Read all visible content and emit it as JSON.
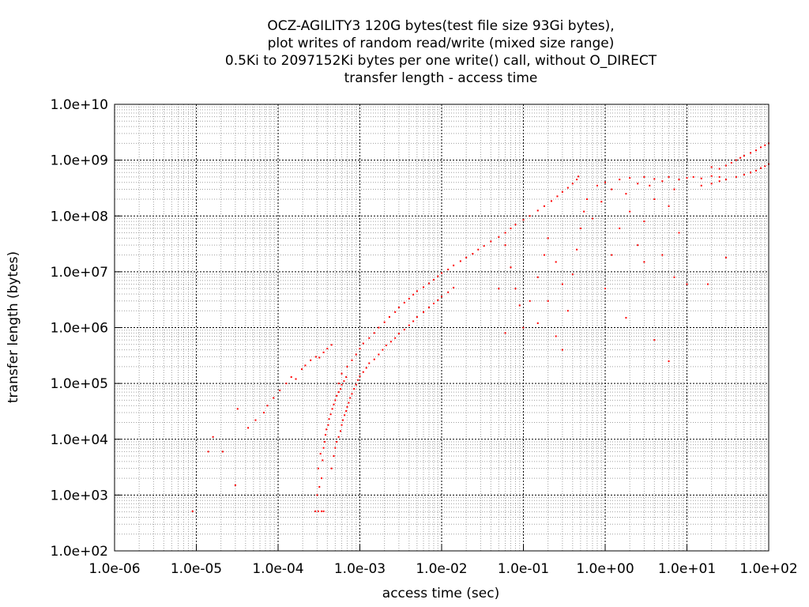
{
  "chart_data": {
    "type": "scatter",
    "title_lines": [
      "OCZ-AGILITY3 120G bytes(test file size 93Gi bytes),",
      "plot writes of random read/write (mixed size range)",
      "0.5Ki to 2097152Ki bytes per one write() call, without O_DIRECT",
      "transfer length - access time"
    ],
    "xlabel": "access time (sec)",
    "ylabel": "transfer length (bytes)",
    "x_scale": "log",
    "y_scale": "log",
    "xlim": [
      1e-06,
      100
    ],
    "ylim": [
      100,
      10000000000
    ],
    "x_ticks": [
      1e-06,
      1e-05,
      0.0001,
      0.001,
      0.01,
      0.1,
      1,
      10,
      100
    ],
    "x_tick_labels": [
      "1.0e-06",
      "1.0e-05",
      "1.0e-04",
      "1.0e-03",
      "1.0e-02",
      "1.0e-01",
      "1.0e+00",
      "1.0e+01",
      "1.0e+02"
    ],
    "y_ticks": [
      100,
      1000,
      10000,
      100000,
      1000000,
      10000000,
      100000000,
      1000000000,
      10000000000
    ],
    "y_tick_labels": [
      "1.0e+02",
      "1.0e+03",
      "1.0e+04",
      "1.0e+05",
      "1.0e+06",
      "1.0e+07",
      "1.0e+08",
      "1.0e+09",
      "1.0e+10"
    ],
    "grid": "major and minor",
    "marker_color": "#ff0000",
    "series": [
      {
        "points": [
          [
            9e-06,
            512
          ],
          [
            1.4e-05,
            6000
          ],
          [
            1.6e-05,
            11000
          ],
          [
            2.1e-05,
            6000
          ],
          [
            3e-05,
            1500
          ],
          [
            3.2e-05,
            35000
          ],
          [
            4.3e-05,
            16000
          ],
          [
            5.3e-05,
            22000
          ],
          [
            6.7e-05,
            30000
          ],
          [
            7.4e-05,
            40000
          ],
          [
            8.8e-05,
            55000
          ],
          [
            0.000105,
            75000
          ],
          [
            0.000126,
            100000
          ],
          [
            0.000145,
            130000
          ],
          [
            0.000165,
            120000
          ],
          [
            0.000195,
            180000
          ],
          [
            0.000215,
            210000
          ],
          [
            0.00025,
            260000
          ],
          [
            0.00029,
            300000
          ],
          [
            0.00032,
            290000
          ],
          [
            0.00036,
            360000
          ],
          [
            0.0004,
            420000
          ],
          [
            0.00045,
            490000
          ],
          [
            0.000285,
            512
          ],
          [
            0.00031,
            512
          ],
          [
            0.00034,
            512
          ],
          [
            0.00036,
            512
          ],
          [
            0.0003,
            1000
          ],
          [
            0.00032,
            1400
          ],
          [
            0.00034,
            2000
          ],
          [
            0.00031,
            3000
          ],
          [
            0.00035,
            4200
          ],
          [
            0.00033,
            5500
          ],
          [
            0.00036,
            7000
          ],
          [
            0.00037,
            9000
          ],
          [
            0.00038,
            12000
          ],
          [
            0.00039,
            15000
          ],
          [
            0.00041,
            18000
          ],
          [
            0.00042,
            23000
          ],
          [
            0.00044,
            28000
          ],
          [
            0.00046,
            35000
          ],
          [
            0.00048,
            42000
          ],
          [
            0.0005,
            50000
          ],
          [
            0.00052,
            60000
          ],
          [
            0.00055,
            70000
          ],
          [
            0.00058,
            80000
          ],
          [
            0.0006,
            95000
          ],
          [
            0.00064,
            110000
          ],
          [
            0.00068,
            130000
          ],
          [
            0.00045,
            3000
          ],
          [
            0.00048,
            5000
          ],
          [
            0.0005,
            7000
          ],
          [
            0.00052,
            9000
          ],
          [
            0.00055,
            11000
          ],
          [
            0.00058,
            14000
          ],
          [
            0.0006,
            18000
          ],
          [
            0.00062,
            22000
          ],
          [
            0.00065,
            27000
          ],
          [
            0.00068,
            32000
          ],
          [
            0.0007,
            38000
          ],
          [
            0.00073,
            45000
          ],
          [
            0.00076,
            55000
          ],
          [
            0.0008,
            65000
          ],
          [
            0.00085,
            80000
          ],
          [
            0.0009,
            95000
          ],
          [
            0.00095,
            115000
          ],
          [
            0.001,
            135000
          ],
          [
            0.0011,
            160000
          ],
          [
            0.0012,
            190000
          ],
          [
            0.0013,
            230000
          ],
          [
            0.0015,
            270000
          ],
          [
            0.0017,
            330000
          ],
          [
            0.0019,
            400000
          ],
          [
            0.0021,
            480000
          ],
          [
            0.0024,
            560000
          ],
          [
            0.0027,
            650000
          ],
          [
            0.003,
            780000
          ],
          [
            0.0035,
            920000
          ],
          [
            0.004,
            1100000
          ],
          [
            0.0045,
            1300000
          ],
          [
            0.005,
            1550000
          ],
          [
            0.006,
            1900000
          ],
          [
            0.007,
            2300000
          ],
          [
            0.008,
            2700000
          ],
          [
            0.009,
            3100000
          ],
          [
            0.01,
            3600000
          ],
          [
            0.012,
            4300000
          ],
          [
            0.014,
            5200000
          ],
          [
            0.00055,
            100000
          ],
          [
            0.0006,
            150000
          ],
          [
            0.0007,
            200000
          ],
          [
            0.0008,
            260000
          ],
          [
            0.0009,
            330000
          ],
          [
            0.001,
            420000
          ],
          [
            0.0011,
            520000
          ],
          [
            0.0013,
            650000
          ],
          [
            0.0015,
            800000
          ],
          [
            0.0017,
            1000000
          ],
          [
            0.002,
            1250000
          ],
          [
            0.0023,
            1550000
          ],
          [
            0.0027,
            1900000
          ],
          [
            0.003,
            2300000
          ],
          [
            0.0035,
            2800000
          ],
          [
            0.004,
            3300000
          ],
          [
            0.0045,
            3900000
          ],
          [
            0.005,
            4500000
          ],
          [
            0.006,
            5300000
          ],
          [
            0.007,
            6200000
          ],
          [
            0.008,
            7200000
          ],
          [
            0.009,
            8300000
          ],
          [
            0.01,
            9500000
          ],
          [
            0.012,
            11000000
          ],
          [
            0.014,
            13000000
          ],
          [
            0.017,
            15500000
          ],
          [
            0.02,
            18000000
          ],
          [
            0.024,
            21000000
          ],
          [
            0.028,
            25000000
          ],
          [
            0.033,
            29000000
          ],
          [
            0.04,
            35000000
          ],
          [
            0.05,
            42000000
          ],
          [
            0.06,
            50000000
          ],
          [
            0.07,
            60000000
          ],
          [
            0.08,
            70000000
          ],
          [
            0.1,
            85000000
          ],
          [
            0.12,
            100000000
          ],
          [
            0.15,
            125000000
          ],
          [
            0.18,
            150000000
          ],
          [
            0.22,
            185000000
          ],
          [
            0.26,
            225000000
          ],
          [
            0.3,
            270000000
          ],
          [
            0.35,
            320000000
          ],
          [
            0.4,
            380000000
          ],
          [
            0.45,
            450000000
          ],
          [
            0.47,
            510000000
          ],
          [
            0.06,
            30000000
          ],
          [
            0.07,
            12000000
          ],
          [
            0.08,
            5000000
          ],
          [
            0.09,
            2500000
          ],
          [
            0.1,
            1000000
          ],
          [
            0.12,
            3000000
          ],
          [
            0.15,
            8000000
          ],
          [
            0.18,
            20000000
          ],
          [
            0.2,
            40000000
          ],
          [
            0.25,
            15000000
          ],
          [
            0.3,
            6000000
          ],
          [
            0.35,
            2000000
          ],
          [
            0.4,
            9000000
          ],
          [
            0.45,
            25000000
          ],
          [
            0.5,
            60000000
          ],
          [
            0.55,
            120000000
          ],
          [
            0.6,
            200000000
          ],
          [
            0.7,
            90000000
          ],
          [
            0.8,
            350000000
          ],
          [
            0.9,
            180000000
          ],
          [
            1.0,
            400000000
          ],
          [
            1.2,
            300000000
          ],
          [
            1.5,
            450000000
          ],
          [
            1.8,
            250000000
          ],
          [
            2.0,
            480000000
          ],
          [
            2.5,
            380000000
          ],
          [
            3.0,
            500000000
          ],
          [
            3.5,
            350000000
          ],
          [
            4.0,
            460000000
          ],
          [
            5.0,
            420000000
          ],
          [
            6.0,
            500000000
          ],
          [
            7.0,
            300000000
          ],
          [
            8.0,
            450000000
          ],
          [
            10.0,
            480000000
          ],
          [
            12.0,
            500000000
          ],
          [
            15.0,
            470000000
          ],
          [
            20.0,
            520000000
          ],
          [
            25.0,
            500000000
          ],
          [
            2.0,
            120000000
          ],
          [
            3.0,
            80000000
          ],
          [
            4.0,
            200000000
          ],
          [
            6.0,
            150000000
          ],
          [
            8.0,
            50000000
          ],
          [
            1.5,
            60000000
          ],
          [
            1.2,
            20000000
          ],
          [
            2.5,
            30000000
          ],
          [
            5.0,
            20000000
          ],
          [
            7.0,
            8000000
          ],
          [
            1.0,
            5000000
          ],
          [
            0.2,
            3000000
          ],
          [
            0.25,
            700000
          ],
          [
            0.15,
            1200000
          ],
          [
            0.05,
            5000000
          ],
          [
            0.06,
            800000
          ],
          [
            0.3,
            400000
          ],
          [
            3.0,
            15000000
          ],
          [
            1.8,
            1500000
          ],
          [
            10.0,
            6000000
          ],
          [
            18.0,
            6000000
          ],
          [
            6.0,
            250000
          ],
          [
            30.0,
            18000000
          ],
          [
            4.0,
            600000
          ],
          [
            20.0,
            750000000
          ],
          [
            25.0,
            700000000
          ],
          [
            30.0,
            800000000
          ],
          [
            35.0,
            900000000
          ],
          [
            40.0,
            1000000000
          ],
          [
            45.0,
            1100000000
          ],
          [
            50.0,
            1200000000
          ],
          [
            60.0,
            1350000000
          ],
          [
            70.0,
            1500000000
          ],
          [
            80.0,
            1700000000
          ],
          [
            90.0,
            1850000000
          ],
          [
            100.0,
            2000000000
          ],
          [
            15.0,
            350000000
          ],
          [
            20.0,
            380000000
          ],
          [
            25.0,
            420000000
          ],
          [
            30.0,
            450000000
          ],
          [
            40.0,
            500000000
          ],
          [
            50.0,
            550000000
          ],
          [
            60.0,
            600000000
          ],
          [
            70.0,
            650000000
          ],
          [
            80.0,
            720000000
          ],
          [
            90.0,
            780000000
          ],
          [
            100.0,
            850000000
          ]
        ]
      }
    ]
  }
}
